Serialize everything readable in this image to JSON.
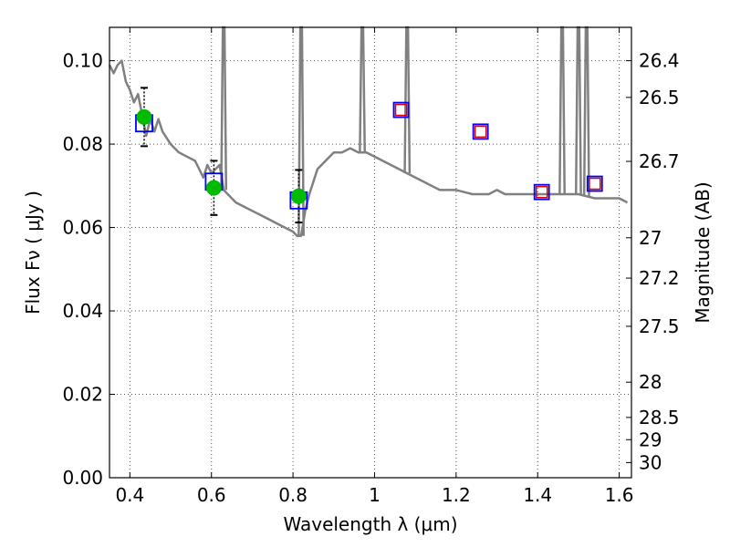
{
  "chart_data": {
    "type": "scatter",
    "xlabel": "Wavelength  λ (μm)",
    "ylabel": "Flux  Fν  ( μJy )",
    "y2label": "Magnitude (AB)",
    "xlim": [
      0.35,
      1.63
    ],
    "ylim": [
      0.0,
      0.108
    ],
    "grid": true,
    "x_ticks": [
      0.4,
      0.6,
      0.8,
      1.0,
      1.2,
      1.4,
      1.6
    ],
    "x_tick_labels": [
      "0.4",
      "0.6",
      "0.8",
      "1",
      "1.2",
      "1.4",
      "1.6"
    ],
    "y_ticks": [
      0.0,
      0.02,
      0.04,
      0.06,
      0.08,
      0.1
    ],
    "y_tick_labels": [
      "0.00",
      "0.02",
      "0.04",
      "0.06",
      "0.08",
      "0.10"
    ],
    "magnitude_ticks": [
      26.4,
      26.5,
      26.7,
      27,
      27.2,
      27.5,
      28,
      28.5,
      29,
      30
    ],
    "magnitude_tick_labels": [
      "26.4",
      "26.5",
      "26.7",
      "27",
      "27.2",
      "27.5",
      "28",
      "28.5",
      "29",
      "30"
    ],
    "colors": {
      "model": "#808080",
      "observed": "#00bb00",
      "model_photometry": "#0000ff",
      "predicted": "#dd0000",
      "errorbar": "#000000"
    },
    "series": [
      {
        "kind": "model_sed",
        "x": [
          0.35,
          0.36,
          0.37,
          0.38,
          0.39,
          0.4,
          0.41,
          0.42,
          0.43,
          0.44,
          0.45,
          0.46,
          0.47,
          0.48,
          0.5,
          0.52,
          0.54,
          0.56,
          0.57,
          0.58,
          0.59,
          0.6,
          0.61,
          0.62,
          0.63,
          0.64,
          0.66,
          0.68,
          0.7,
          0.72,
          0.74,
          0.76,
          0.78,
          0.8,
          0.81,
          0.82,
          0.83,
          0.84,
          0.86,
          0.88,
          0.9,
          0.92,
          0.94,
          0.96,
          0.98,
          1.0,
          1.02,
          1.04,
          1.06,
          1.08,
          1.1,
          1.12,
          1.14,
          1.16,
          1.2,
          1.24,
          1.28,
          1.3,
          1.32,
          1.36,
          1.4,
          1.42,
          1.46,
          1.5,
          1.54,
          1.58,
          1.6,
          1.62
        ],
        "y": [
          0.099,
          0.097,
          0.099,
          0.1,
          0.095,
          0.093,
          0.09,
          0.092,
          0.087,
          0.082,
          0.086,
          0.083,
          0.086,
          0.083,
          0.08,
          0.078,
          0.077,
          0.076,
          0.074,
          0.072,
          0.075,
          0.073,
          0.074,
          0.075,
          0.069,
          0.068,
          0.066,
          0.065,
          0.064,
          0.063,
          0.062,
          0.061,
          0.06,
          0.059,
          0.058,
          0.058,
          0.064,
          0.068,
          0.074,
          0.076,
          0.078,
          0.078,
          0.079,
          0.078,
          0.078,
          0.077,
          0.076,
          0.075,
          0.074,
          0.073,
          0.072,
          0.071,
          0.07,
          0.069,
          0.069,
          0.068,
          0.068,
          0.069,
          0.068,
          0.068,
          0.068,
          0.068,
          0.068,
          0.068,
          0.067,
          0.067,
          0.067,
          0.066
        ]
      },
      {
        "kind": "emission_lines",
        "x": [
          0.63,
          0.82,
          0.97,
          1.08,
          1.46,
          1.5,
          1.52
        ],
        "peak": [
          0.108,
          0.108,
          0.108,
          0.108,
          0.108,
          0.108,
          0.108
        ]
      },
      {
        "kind": "observed_photometry",
        "x": [
          0.435,
          0.606,
          0.814
        ],
        "y": [
          0.0865,
          0.0695,
          0.0675
        ],
        "yerr": [
          0.007,
          0.0065,
          0.0063
        ]
      },
      {
        "kind": "model_photometry",
        "x": [
          0.435,
          0.606,
          0.814,
          1.065,
          1.26,
          1.41,
          1.54
        ],
        "y": [
          0.085,
          0.071,
          0.0665,
          0.0882,
          0.083,
          0.0685,
          0.0705
        ]
      },
      {
        "kind": "predicted_photometry",
        "x": [
          1.065,
          1.26,
          1.41,
          1.54
        ],
        "y": [
          0.0882,
          0.083,
          0.0685,
          0.0705
        ]
      }
    ]
  }
}
